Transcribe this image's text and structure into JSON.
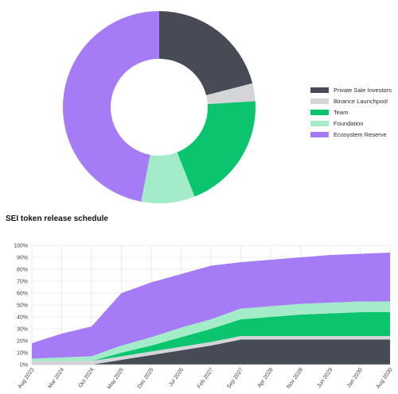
{
  "colors": {
    "private_sale": "#474b55",
    "binance": "#d3d5d8",
    "team": "#0ac46e",
    "foundation": "#a4ecc9",
    "ecosystem": "#a57cf5"
  },
  "chart_data": [
    {
      "type": "pie",
      "title": "",
      "legend_position": "right",
      "series": [
        {
          "name": "Private Sale Investors",
          "value": 21,
          "color": "#474b55"
        },
        {
          "name": "Binance Launchpool",
          "value": 3,
          "color": "#d3d5d8"
        },
        {
          "name": "Team",
          "value": 20,
          "color": "#0ac46e"
        },
        {
          "name": "Foundation",
          "value": 9,
          "color": "#a4ecc9"
        },
        {
          "name": "Ecosystem Reserve",
          "value": 47,
          "color": "#a57cf5"
        }
      ]
    },
    {
      "type": "area",
      "title": "SEI token release schedule",
      "stacked": true,
      "legend": false,
      "grid": true,
      "categories": [
        "Aug 2023",
        "Mar 2024",
        "Oct 2024",
        "May 2025",
        "Dec 2025",
        "Jul 2026",
        "Feb 2027",
        "Sep 2027",
        "Apr 2028",
        "Nov 2028",
        "Jun 2029",
        "Jan 2030",
        "Aug 2030"
      ],
      "yticks": [
        "0%",
        "10%",
        "20%",
        "30%",
        "40%",
        "50%",
        "60%",
        "70%",
        "80%",
        "90%",
        "100%"
      ],
      "ylim": [
        0,
        100
      ],
      "series": [
        {
          "name": "Private Sale Investors",
          "color": "#474b55",
          "values": [
            0,
            0,
            0,
            4,
            8,
            12,
            16,
            21,
            21,
            21,
            21,
            21,
            21
          ]
        },
        {
          "name": "Binance Launchpool",
          "color": "#d3d5d8",
          "values": [
            3,
            3,
            3,
            3,
            3,
            3,
            3,
            3,
            3,
            3,
            3,
            3,
            3
          ]
        },
        {
          "name": "Team",
          "color": "#0ac46e",
          "values": [
            0,
            0,
            0,
            3,
            5,
            8,
            11,
            14,
            16,
            18,
            19,
            20,
            20
          ]
        },
        {
          "name": "Foundation",
          "color": "#a4ecc9",
          "values": [
            2,
            3,
            4,
            6,
            7,
            8,
            8,
            9,
            9,
            9,
            9,
            9,
            9
          ]
        },
        {
          "name": "Ecosystem Reserve",
          "color": "#a57cf5",
          "values": [
            13,
            20,
            25,
            44,
            46,
            45,
            45,
            39,
            39,
            39,
            40,
            40,
            41
          ]
        }
      ]
    }
  ]
}
